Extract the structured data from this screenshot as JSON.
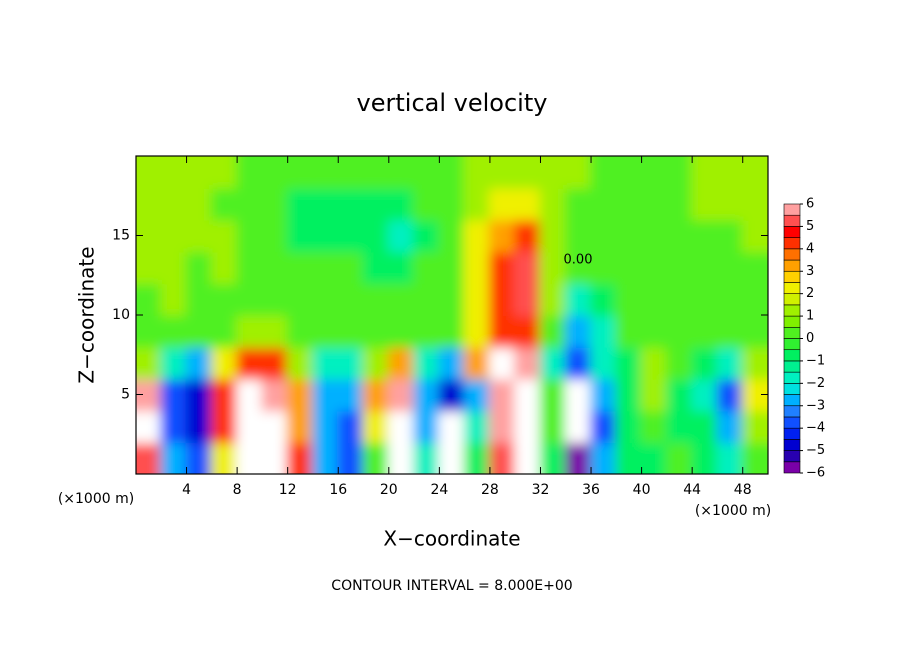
{
  "chart_data": {
    "type": "heatmap",
    "title": "vertical velocity",
    "x_label": "X−coordinate",
    "y_label": "Z−coordinate",
    "x_unit": "(×1000 m)",
    "y_unit": "(×1000 m)",
    "footer": "CONTOUR INTERVAL = 8.000E+00",
    "contour_label": "0.00",
    "x": [
      1,
      3,
      5,
      7,
      9,
      11,
      13,
      15,
      17,
      19,
      21,
      23,
      25,
      27,
      29,
      31,
      33,
      35,
      37,
      39,
      41,
      43,
      45,
      47,
      49
    ],
    "y": [
      1,
      3,
      5,
      7,
      9,
      11,
      13,
      15,
      17,
      19
    ],
    "z": [
      [
        5,
        -3,
        -4,
        2,
        7,
        7,
        4,
        -3,
        -4,
        0,
        7,
        -2,
        -7,
        -1,
        5,
        7,
        -1,
        -6,
        -3,
        -1,
        -1,
        0,
        -1,
        -2,
        0
      ],
      [
        7,
        -4,
        -5,
        4,
        7,
        7,
        3,
        -3,
        -4,
        2,
        7,
        -3,
        -7,
        -2,
        6,
        7,
        0,
        -7,
        -4,
        -1,
        0,
        -1,
        -1,
        -3,
        1
      ],
      [
        6,
        -4,
        -5,
        4,
        7,
        6,
        3,
        -3,
        -3,
        3,
        6,
        -3,
        -5,
        -3,
        6,
        7,
        0,
        -7,
        -3,
        -1,
        1,
        -1,
        -2,
        -4,
        2
      ],
      [
        1,
        -2,
        -3,
        2,
        4,
        4,
        1,
        -2,
        -2,
        1,
        3,
        -2,
        -3,
        3,
        7,
        6,
        -2,
        -4,
        -2,
        -1,
        1,
        0,
        -1,
        -2,
        1
      ],
      [
        0,
        0,
        0,
        0,
        1,
        1,
        0,
        0,
        0,
        0,
        0,
        0,
        0,
        2,
        4,
        4,
        0,
        -3,
        -2,
        0,
        0,
        0,
        0,
        0,
        0
      ],
      [
        0,
        1,
        0,
        0,
        0,
        0,
        0,
        0,
        0,
        0,
        0,
        0,
        0,
        2,
        4,
        5,
        1,
        -2,
        -1,
        0,
        0,
        0,
        0,
        0,
        0
      ],
      [
        1,
        1,
        0,
        1,
        0,
        0,
        0,
        0,
        0,
        -1,
        -1,
        0,
        0,
        2,
        4,
        5,
        1,
        0,
        0,
        0,
        0,
        0,
        0,
        0,
        0
      ],
      [
        1,
        1,
        1,
        1,
        0,
        0,
        -1,
        -1,
        -1,
        -1,
        -2,
        -1,
        0,
        2,
        3,
        4,
        1,
        0,
        0,
        0,
        0,
        0,
        0,
        0,
        1
      ],
      [
        1,
        1,
        1,
        0,
        0,
        0,
        -1,
        -1,
        -1,
        -1,
        -1,
        0,
        0,
        1,
        2,
        2,
        1,
        0,
        0,
        0,
        0,
        0,
        1,
        1,
        1
      ],
      [
        1,
        1,
        1,
        1,
        0,
        0,
        0,
        0,
        0,
        0,
        0,
        0,
        0,
        1,
        1,
        1,
        1,
        1,
        0,
        0,
        0,
        0,
        1,
        1,
        1
      ]
    ],
    "xlim": [
      0,
      50
    ],
    "ylim": [
      0,
      20
    ],
    "xticks": [
      4,
      8,
      12,
      16,
      20,
      24,
      28,
      32,
      36,
      40,
      44,
      48
    ],
    "yticks": [
      5,
      10,
      15
    ],
    "colorbar": {
      "lim": [
        -6,
        6
      ],
      "colors": [
        "#7a00a8",
        "#2800b0",
        "#0000d0",
        "#0020f0",
        "#1050ff",
        "#2080ff",
        "#00b0ff",
        "#00e0e0",
        "#00f0c0",
        "#00f090",
        "#00f060",
        "#30f030",
        "#50f020",
        "#80f000",
        "#a0f000",
        "#d0f000",
        "#f0f000",
        "#ffd000",
        "#ffa000",
        "#ff7000",
        "#ff3000",
        "#ff0000",
        "#ff5050",
        "#ffa0a0"
      ],
      "ticks": [
        {
          "value": -6,
          "label": "−6"
        },
        {
          "value": -5,
          "label": "−5"
        },
        {
          "value": -4,
          "label": "−4"
        },
        {
          "value": -3,
          "label": "−3"
        },
        {
          "value": -2,
          "label": "−2"
        },
        {
          "value": -1,
          "label": "−1"
        },
        0,
        1,
        2,
        3,
        4,
        5,
        6
      ]
    }
  }
}
